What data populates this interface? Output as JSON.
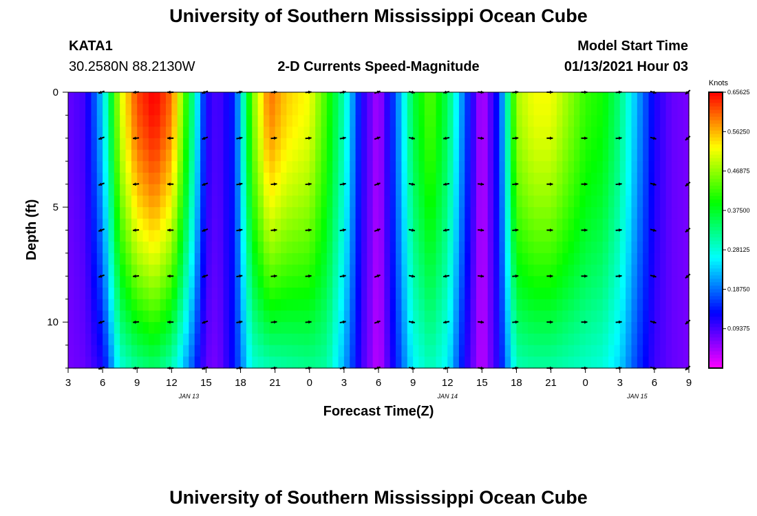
{
  "page": {
    "title": "University of Southern Mississippi Ocean Cube",
    "station": "KATA1",
    "coordinates": "30.2580N 88.2130W",
    "plot_title": "2-D Currents Speed-Magnitude",
    "start_label": "Model Start Time",
    "start_value": "01/13/2021 Hour 03",
    "footer_title": "University of Southern Mississippi Ocean Cube"
  },
  "chart_data": {
    "type": "heatmap",
    "title": "2-D Currents Speed-Magnitude",
    "xlabel": "Forecast Time(Z)",
    "ylabel": "Depth (ft)",
    "x_range_hours": [
      0,
      54
    ],
    "y_range_ft": [
      0,
      12
    ],
    "y_ticks": [
      0,
      5,
      10
    ],
    "x_ticks": [
      {
        "hour": 0,
        "label": "3"
      },
      {
        "hour": 3,
        "label": "6"
      },
      {
        "hour": 6,
        "label": "9"
      },
      {
        "hour": 9,
        "label": "12"
      },
      {
        "hour": 12,
        "label": "15"
      },
      {
        "hour": 15,
        "label": "18"
      },
      {
        "hour": 18,
        "label": "21"
      },
      {
        "hour": 21,
        "label": "0"
      },
      {
        "hour": 24,
        "label": "3"
      },
      {
        "hour": 27,
        "label": "6"
      },
      {
        "hour": 30,
        "label": "9"
      },
      {
        "hour": 33,
        "label": "12"
      },
      {
        "hour": 36,
        "label": "15"
      },
      {
        "hour": 39,
        "label": "18"
      },
      {
        "hour": 42,
        "label": "21"
      },
      {
        "hour": 45,
        "label": "0"
      },
      {
        "hour": 48,
        "label": "3"
      },
      {
        "hour": 51,
        "label": "6"
      },
      {
        "hour": 54,
        "label": "9"
      }
    ],
    "date_labels": [
      {
        "hour": 10.5,
        "label": "JAN 13"
      },
      {
        "hour": 33,
        "label": "JAN 14"
      },
      {
        "hour": 49.5,
        "label": "JAN 15"
      }
    ],
    "colorbar": {
      "units": "Knots",
      "ticks": [
        "0.09375",
        "0.18750",
        "0.28125",
        "0.37500",
        "0.46875",
        "0.56250",
        "0.65625"
      ],
      "range": [
        0,
        0.65625
      ]
    },
    "surface_speed_profile": [
      {
        "hour": 0,
        "speed": 0.08
      },
      {
        "hour": 1.5,
        "speed": 0.1
      },
      {
        "hour": 3,
        "speed": 0.24
      },
      {
        "hour": 4.5,
        "speed": 0.5
      },
      {
        "hour": 6,
        "speed": 0.62
      },
      {
        "hour": 7.5,
        "speed": 0.66
      },
      {
        "hour": 9,
        "speed": 0.6
      },
      {
        "hour": 10.5,
        "speed": 0.38
      },
      {
        "hour": 12,
        "speed": 0.12
      },
      {
        "hour": 13,
        "speed": 0.09
      },
      {
        "hour": 14.5,
        "speed": 0.15
      },
      {
        "hour": 16,
        "speed": 0.45
      },
      {
        "hour": 17.5,
        "speed": 0.6
      },
      {
        "hour": 19,
        "speed": 0.55
      },
      {
        "hour": 21,
        "speed": 0.52
      },
      {
        "hour": 22.5,
        "speed": 0.42
      },
      {
        "hour": 24,
        "speed": 0.3
      },
      {
        "hour": 25.5,
        "speed": 0.12
      },
      {
        "hour": 27,
        "speed": 0.04
      },
      {
        "hour": 28.5,
        "speed": 0.18
      },
      {
        "hour": 30,
        "speed": 0.36
      },
      {
        "hour": 31.5,
        "speed": 0.44
      },
      {
        "hour": 33,
        "speed": 0.35
      },
      {
        "hour": 34.5,
        "speed": 0.18
      },
      {
        "hour": 36,
        "speed": 0.03
      },
      {
        "hour": 37.5,
        "speed": 0.15
      },
      {
        "hour": 39,
        "speed": 0.48
      },
      {
        "hour": 40.5,
        "speed": 0.52
      },
      {
        "hour": 42,
        "speed": 0.52
      },
      {
        "hour": 43.5,
        "speed": 0.47
      },
      {
        "hour": 45,
        "speed": 0.42
      },
      {
        "hour": 46.5,
        "speed": 0.4
      },
      {
        "hour": 48,
        "speed": 0.33
      },
      {
        "hour": 49.5,
        "speed": 0.22
      },
      {
        "hour": 51,
        "speed": 0.12
      },
      {
        "hour": 52.5,
        "speed": 0.08
      },
      {
        "hour": 54,
        "speed": 0.07
      }
    ],
    "bottom_speed_profile": [
      {
        "hour": 0,
        "speed": 0.07
      },
      {
        "hour": 1.5,
        "speed": 0.08
      },
      {
        "hour": 3,
        "speed": 0.12
      },
      {
        "hour": 4.5,
        "speed": 0.28
      },
      {
        "hour": 6,
        "speed": 0.32
      },
      {
        "hour": 7.5,
        "speed": 0.34
      },
      {
        "hour": 9,
        "speed": 0.3
      },
      {
        "hour": 10.5,
        "speed": 0.2
      },
      {
        "hour": 12,
        "speed": 0.08
      },
      {
        "hour": 13,
        "speed": 0.07
      },
      {
        "hour": 14.5,
        "speed": 0.14
      },
      {
        "hour": 16,
        "speed": 0.28
      },
      {
        "hour": 17.5,
        "speed": 0.3
      },
      {
        "hour": 19,
        "speed": 0.31
      },
      {
        "hour": 21,
        "speed": 0.32
      },
      {
        "hour": 22.5,
        "speed": 0.31
      },
      {
        "hour": 24,
        "speed": 0.22
      },
      {
        "hour": 25.5,
        "speed": 0.1
      },
      {
        "hour": 27,
        "speed": 0.03
      },
      {
        "hour": 28.5,
        "speed": 0.14
      },
      {
        "hour": 30,
        "speed": 0.26
      },
      {
        "hour": 31.5,
        "speed": 0.3
      },
      {
        "hour": 33,
        "speed": 0.26
      },
      {
        "hour": 34.5,
        "speed": 0.12
      },
      {
        "hour": 36,
        "speed": 0.03
      },
      {
        "hour": 37.5,
        "speed": 0.12
      },
      {
        "hour": 39,
        "speed": 0.3
      },
      {
        "hour": 40.5,
        "speed": 0.31
      },
      {
        "hour": 42,
        "speed": 0.31
      },
      {
        "hour": 43.5,
        "speed": 0.3
      },
      {
        "hour": 45,
        "speed": 0.29
      },
      {
        "hour": 46.5,
        "speed": 0.28
      },
      {
        "hour": 48,
        "speed": 0.24
      },
      {
        "hour": 49.5,
        "speed": 0.16
      },
      {
        "hour": 51,
        "speed": 0.1
      },
      {
        "hour": 52.5,
        "speed": 0.08
      },
      {
        "hour": 54,
        "speed": 0.07
      }
    ],
    "vector_depths_ft": [
      0,
      2,
      4,
      6,
      8,
      10,
      12
    ],
    "vectors": [
      {
        "hour": 3,
        "dir": 200
      },
      {
        "hour": 6,
        "dir": 185
      },
      {
        "hour": 9,
        "dir": 180
      },
      {
        "hour": 12,
        "dir": 200
      },
      {
        "hour": 15,
        "dir": 10
      },
      {
        "hour": 18,
        "dir": 5
      },
      {
        "hour": 21,
        "dir": 5
      },
      {
        "hour": 24,
        "dir": 10
      },
      {
        "hour": 27,
        "dir": 20
      },
      {
        "hour": 30,
        "dir": 350
      },
      {
        "hour": 33,
        "dir": 190
      },
      {
        "hour": 36,
        "dir": 355
      },
      {
        "hour": 39,
        "dir": 5
      },
      {
        "hour": 42,
        "dir": 0
      },
      {
        "hour": 45,
        "dir": 0
      },
      {
        "hour": 48,
        "dir": 5
      },
      {
        "hour": 51,
        "dir": 345
      },
      {
        "hour": 54,
        "dir": 220
      }
    ]
  }
}
